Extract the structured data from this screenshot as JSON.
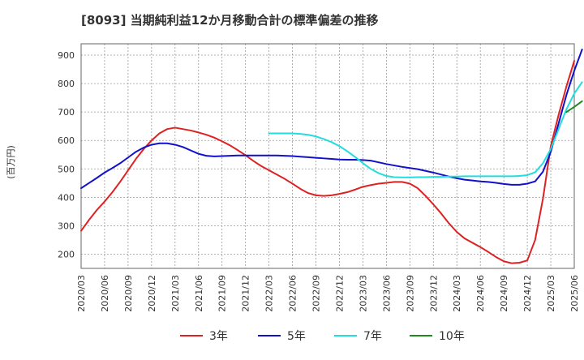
{
  "chart_data": {
    "type": "line",
    "title": "[8093]  当期純利益12か月移動合計の標準偏差の推移",
    "ylabel": "(百万円)",
    "xlabel": "",
    "ylim": [
      150,
      940
    ],
    "yticks": [
      200,
      300,
      400,
      500,
      600,
      700,
      800,
      900
    ],
    "x_tick_labels": [
      "2020/03",
      "2020/06",
      "2020/09",
      "2020/12",
      "2021/03",
      "2021/06",
      "2021/09",
      "2021/12",
      "2022/03",
      "2022/06",
      "2022/09",
      "2022/12",
      "2023/03",
      "2023/06",
      "2023/09",
      "2023/12",
      "2024/03",
      "2024/06",
      "2024/09",
      "2024/12",
      "2025/03",
      "2025/06"
    ],
    "grid": true,
    "legend_position": "bottom",
    "series": [
      {
        "name": "3年",
        "color": "#dd2222",
        "points": [
          [
            "2020/03",
            282
          ],
          [
            "2020/04",
            320
          ],
          [
            "2020/05",
            355
          ],
          [
            "2020/06",
            385
          ],
          [
            "2020/07",
            418
          ],
          [
            "2020/08",
            455
          ],
          [
            "2020/09",
            495
          ],
          [
            "2020/10",
            535
          ],
          [
            "2020/11",
            570
          ],
          [
            "2020/12",
            600
          ],
          [
            "2021/01",
            625
          ],
          [
            "2021/02",
            640
          ],
          [
            "2021/03",
            645
          ],
          [
            "2021/04",
            640
          ],
          [
            "2021/05",
            635
          ],
          [
            "2021/06",
            628
          ],
          [
            "2021/07",
            620
          ],
          [
            "2021/08",
            610
          ],
          [
            "2021/09",
            597
          ],
          [
            "2021/10",
            583
          ],
          [
            "2021/11",
            566
          ],
          [
            "2021/12",
            548
          ],
          [
            "2022/01",
            528
          ],
          [
            "2022/02",
            510
          ],
          [
            "2022/03",
            495
          ],
          [
            "2022/04",
            480
          ],
          [
            "2022/05",
            465
          ],
          [
            "2022/06",
            448
          ],
          [
            "2022/07",
            430
          ],
          [
            "2022/08",
            415
          ],
          [
            "2022/09",
            407
          ],
          [
            "2022/10",
            405
          ],
          [
            "2022/11",
            407
          ],
          [
            "2022/12",
            412
          ],
          [
            "2023/01",
            418
          ],
          [
            "2023/02",
            427
          ],
          [
            "2023/03",
            437
          ],
          [
            "2023/04",
            443
          ],
          [
            "2023/05",
            448
          ],
          [
            "2023/06",
            451
          ],
          [
            "2023/07",
            454
          ],
          [
            "2023/08",
            454
          ],
          [
            "2023/09",
            448
          ],
          [
            "2023/10",
            432
          ],
          [
            "2023/11",
            405
          ],
          [
            "2023/12",
            375
          ],
          [
            "2024/01",
            343
          ],
          [
            "2024/02",
            308
          ],
          [
            "2024/03",
            278
          ],
          [
            "2024/04",
            255
          ],
          [
            "2024/05",
            240
          ],
          [
            "2024/06",
            225
          ],
          [
            "2024/07",
            208
          ],
          [
            "2024/08",
            190
          ],
          [
            "2024/09",
            175
          ],
          [
            "2024/10",
            168
          ],
          [
            "2024/11",
            170
          ],
          [
            "2024/12",
            178
          ],
          [
            "2025/01",
            250
          ],
          [
            "2025/02",
            395
          ],
          [
            "2025/03",
            580
          ],
          [
            "2025/04",
            690
          ],
          [
            "2025/05",
            790
          ],
          [
            "2025/06",
            880
          ]
        ]
      },
      {
        "name": "5年",
        "color": "#1111cc",
        "points": [
          [
            "2020/03",
            432
          ],
          [
            "2020/04",
            450
          ],
          [
            "2020/05",
            468
          ],
          [
            "2020/06",
            487
          ],
          [
            "2020/07",
            503
          ],
          [
            "2020/08",
            520
          ],
          [
            "2020/09",
            540
          ],
          [
            "2020/10",
            560
          ],
          [
            "2020/11",
            575
          ],
          [
            "2020/12",
            585
          ],
          [
            "2021/01",
            590
          ],
          [
            "2021/02",
            590
          ],
          [
            "2021/03",
            585
          ],
          [
            "2021/04",
            577
          ],
          [
            "2021/05",
            565
          ],
          [
            "2021/06",
            553
          ],
          [
            "2021/07",
            546
          ],
          [
            "2021/08",
            544
          ],
          [
            "2021/09",
            545
          ],
          [
            "2021/10",
            546
          ],
          [
            "2021/11",
            547
          ],
          [
            "2021/12",
            547
          ],
          [
            "2022/01",
            547
          ],
          [
            "2022/02",
            547
          ],
          [
            "2022/03",
            547
          ],
          [
            "2022/04",
            547
          ],
          [
            "2022/05",
            546
          ],
          [
            "2022/06",
            545
          ],
          [
            "2022/07",
            543
          ],
          [
            "2022/08",
            541
          ],
          [
            "2022/09",
            539
          ],
          [
            "2022/10",
            537
          ],
          [
            "2022/11",
            535
          ],
          [
            "2022/12",
            533
          ],
          [
            "2023/01",
            532
          ],
          [
            "2023/02",
            532
          ],
          [
            "2023/03",
            531
          ],
          [
            "2023/04",
            529
          ],
          [
            "2023/05",
            523
          ],
          [
            "2023/06",
            517
          ],
          [
            "2023/07",
            512
          ],
          [
            "2023/08",
            507
          ],
          [
            "2023/09",
            503
          ],
          [
            "2023/10",
            499
          ],
          [
            "2023/11",
            493
          ],
          [
            "2023/12",
            487
          ],
          [
            "2024/01",
            480
          ],
          [
            "2024/02",
            473
          ],
          [
            "2024/03",
            467
          ],
          [
            "2024/04",
            462
          ],
          [
            "2024/05",
            459
          ],
          [
            "2024/06",
            456
          ],
          [
            "2024/07",
            454
          ],
          [
            "2024/08",
            451
          ],
          [
            "2024/09",
            447
          ],
          [
            "2024/10",
            444
          ],
          [
            "2024/11",
            444
          ],
          [
            "2024/12",
            448
          ],
          [
            "2025/01",
            456
          ],
          [
            "2025/02",
            490
          ],
          [
            "2025/03",
            560
          ],
          [
            "2025/04",
            660
          ],
          [
            "2025/05",
            760
          ],
          [
            "2025/06",
            845
          ],
          [
            "2025/07",
            920
          ]
        ]
      },
      {
        "name": "7年",
        "color": "#22dddd",
        "points": [
          [
            "2022/03",
            625
          ],
          [
            "2022/04",
            625
          ],
          [
            "2022/05",
            625
          ],
          [
            "2022/06",
            625
          ],
          [
            "2022/07",
            623
          ],
          [
            "2022/08",
            620
          ],
          [
            "2022/09",
            614
          ],
          [
            "2022/10",
            605
          ],
          [
            "2022/11",
            594
          ],
          [
            "2022/12",
            580
          ],
          [
            "2023/01",
            562
          ],
          [
            "2023/02",
            542
          ],
          [
            "2023/03",
            520
          ],
          [
            "2023/04",
            500
          ],
          [
            "2023/05",
            485
          ],
          [
            "2023/06",
            475
          ],
          [
            "2023/07",
            471
          ],
          [
            "2023/08",
            470
          ],
          [
            "2023/09",
            470
          ],
          [
            "2023/10",
            471
          ],
          [
            "2023/11",
            471
          ],
          [
            "2023/12",
            472
          ],
          [
            "2024/01",
            472
          ],
          [
            "2024/02",
            473
          ],
          [
            "2024/03",
            473
          ],
          [
            "2024/04",
            474
          ],
          [
            "2024/05",
            474
          ],
          [
            "2024/06",
            474
          ],
          [
            "2024/07",
            474
          ],
          [
            "2024/08",
            474
          ],
          [
            "2024/09",
            474
          ],
          [
            "2024/10",
            474
          ],
          [
            "2024/11",
            475
          ],
          [
            "2024/12",
            478
          ],
          [
            "2025/01",
            488
          ],
          [
            "2025/02",
            520
          ],
          [
            "2025/03",
            570
          ],
          [
            "2025/04",
            640
          ],
          [
            "2025/05",
            710
          ],
          [
            "2025/06",
            765
          ],
          [
            "2025/07",
            805
          ]
        ]
      },
      {
        "name": "10年",
        "color": "#228822",
        "points": [
          [
            "2025/05",
            700
          ],
          [
            "2025/06",
            718
          ],
          [
            "2025/07",
            738
          ]
        ]
      }
    ]
  }
}
